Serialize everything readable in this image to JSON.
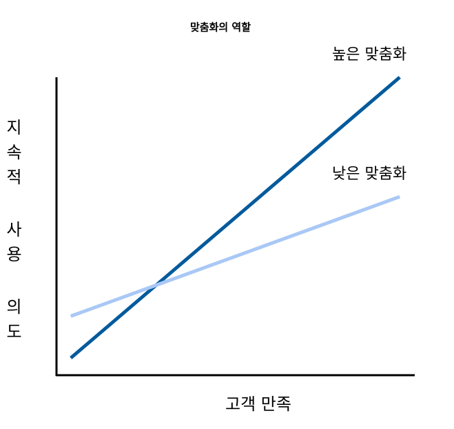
{
  "chart_data": {
    "type": "line",
    "title": "맞춤화의 역할",
    "x_label": "고객 만족",
    "y_label": "지속적 사용 의도",
    "x": [
      0.4,
      9.6
    ],
    "xlim": [
      0,
      10
    ],
    "ylim": [
      0,
      10
    ],
    "series": [
      {
        "name": "높은 맞춤화",
        "color": "#035a9c",
        "values": [
          0.6,
          10
        ]
      },
      {
        "name": "낮은 맞춤화",
        "color": "#a9c8f5",
        "values": [
          2.0,
          6.0
        ]
      }
    ]
  }
}
